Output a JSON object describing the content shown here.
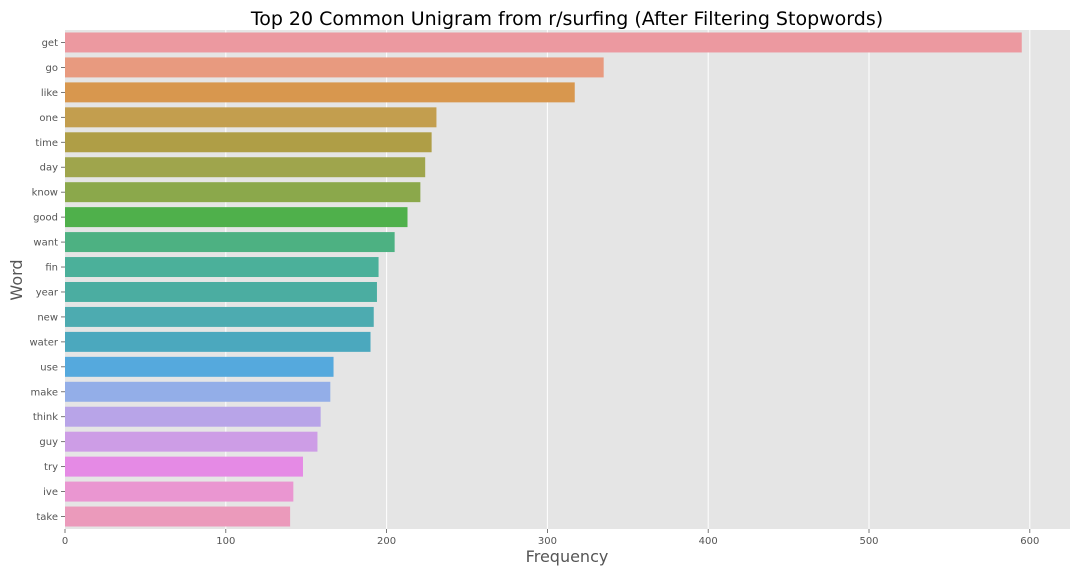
{
  "chart_data": {
    "type": "bar",
    "orientation": "horizontal",
    "title": "Top 20 Common Unigram from r/surfing (After Filtering Stopwords)",
    "xlabel": "Frequency",
    "ylabel": "Word",
    "xlim": [
      0,
      625
    ],
    "xticks": [
      0,
      100,
      200,
      300,
      400,
      500,
      600
    ],
    "grid": true,
    "categories": [
      "get",
      "go",
      "like",
      "one",
      "time",
      "day",
      "know",
      "good",
      "want",
      "fin",
      "year",
      "new",
      "water",
      "use",
      "make",
      "think",
      "guy",
      "try",
      "ive",
      "take"
    ],
    "values": [
      595,
      335,
      317,
      231,
      228,
      224,
      221,
      213,
      205,
      195,
      194,
      192,
      190,
      167,
      165,
      159,
      157,
      148,
      142,
      140
    ],
    "colors": [
      "#ec99a0",
      "#e89a7f",
      "#d8974e",
      "#c39e4e",
      "#af9e46",
      "#9fa54c",
      "#8ba84b",
      "#4fb04b",
      "#4db182",
      "#4bb09a",
      "#4bada1",
      "#4dabb0",
      "#4ba8be",
      "#55a9dd",
      "#93aee8",
      "#b8a4e8",
      "#cd9de6",
      "#e58ae5",
      "#ea96d1",
      "#eb9abb"
    ]
  }
}
